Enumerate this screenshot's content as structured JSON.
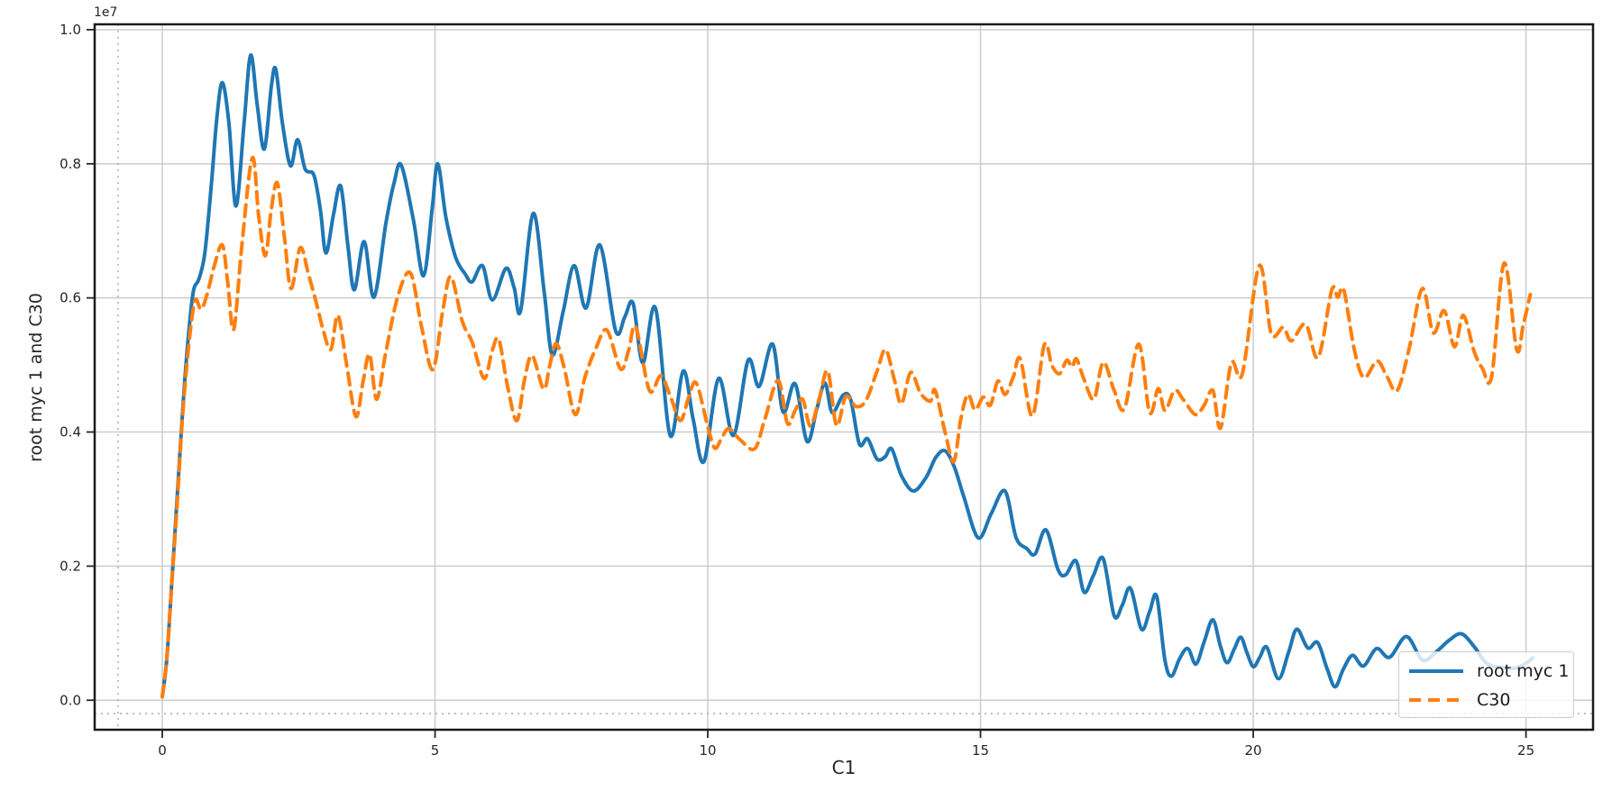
{
  "figure": {
    "y_offset_label": "1e7",
    "background": "#ffffff",
    "text_color": "#262626",
    "grid_color": "#cccccc",
    "spine_color": "#1a1a1a"
  },
  "legend": {
    "position": "lower right",
    "entries": [
      {
        "label": "root myc 1",
        "color": "#1f77b4",
        "style": "solid"
      },
      {
        "label": "C30",
        "color": "#ff7f0e",
        "style": "dashed"
      }
    ]
  },
  "chart_data": {
    "type": "line",
    "title": "",
    "xlabel": "C1",
    "ylabel": "root myc 1 and C30",
    "y_offset_label": "1e7",
    "y_unit_scale": 10000000,
    "xlim": [
      -1.24,
      26.23
    ],
    "ylim": [
      -0.044,
      1.008
    ],
    "grid": true,
    "x_ticks": [
      0,
      5,
      10,
      15,
      20,
      25
    ],
    "x_tick_labels": [
      "0",
      "5",
      "10",
      "15",
      "20",
      "25"
    ],
    "y_ticks": [
      0.0,
      0.2,
      0.4,
      0.6,
      0.8,
      1.0
    ],
    "y_tick_labels": [
      "0.0",
      "0.2",
      "0.4",
      "0.6",
      "0.8",
      "1.0"
    ],
    "reference_lines": [
      {
        "orientation": "vertical",
        "x": -0.81,
        "style": "dotted"
      },
      {
        "orientation": "horizontal",
        "y": -0.02,
        "style": "dotted"
      }
    ],
    "series": [
      {
        "name": "root myc 1",
        "color": "#1f77b4",
        "style": "solid",
        "points": [
          [
            0,
            0.005
          ],
          [
            0.08,
            0.06
          ],
          [
            0.17,
            0.17
          ],
          [
            0.27,
            0.3
          ],
          [
            0.38,
            0.44
          ],
          [
            0.48,
            0.545
          ],
          [
            0.57,
            0.61
          ],
          [
            0.67,
            0.628
          ],
          [
            0.78,
            0.667
          ],
          [
            0.9,
            0.77
          ],
          [
            1.0,
            0.868
          ],
          [
            1.1,
            0.921
          ],
          [
            1.22,
            0.862
          ],
          [
            1.35,
            0.737
          ],
          [
            1.5,
            0.862
          ],
          [
            1.62,
            0.962
          ],
          [
            1.74,
            0.888
          ],
          [
            1.87,
            0.822
          ],
          [
            2.0,
            0.916
          ],
          [
            2.08,
            0.941
          ],
          [
            2.2,
            0.862
          ],
          [
            2.35,
            0.797
          ],
          [
            2.48,
            0.836
          ],
          [
            2.62,
            0.792
          ],
          [
            2.78,
            0.783
          ],
          [
            2.9,
            0.73
          ],
          [
            3.0,
            0.667
          ],
          [
            3.14,
            0.725
          ],
          [
            3.27,
            0.767
          ],
          [
            3.4,
            0.68
          ],
          [
            3.52,
            0.612
          ],
          [
            3.7,
            0.684
          ],
          [
            3.88,
            0.601
          ],
          [
            4.1,
            0.712
          ],
          [
            4.25,
            0.772
          ],
          [
            4.38,
            0.798
          ],
          [
            4.6,
            0.718
          ],
          [
            4.79,
            0.633
          ],
          [
            4.95,
            0.735
          ],
          [
            5.05,
            0.8
          ],
          [
            5.2,
            0.72
          ],
          [
            5.38,
            0.66
          ],
          [
            5.55,
            0.636
          ],
          [
            5.68,
            0.624
          ],
          [
            5.87,
            0.648
          ],
          [
            6.05,
            0.597
          ],
          [
            6.3,
            0.644
          ],
          [
            6.45,
            0.615
          ],
          [
            6.57,
            0.581
          ],
          [
            6.8,
            0.726
          ],
          [
            7.0,
            0.61
          ],
          [
            7.15,
            0.515
          ],
          [
            7.35,
            0.58
          ],
          [
            7.55,
            0.648
          ],
          [
            7.77,
            0.585
          ],
          [
            8.02,
            0.679
          ],
          [
            8.31,
            0.551
          ],
          [
            8.48,
            0.572
          ],
          [
            8.63,
            0.592
          ],
          [
            8.81,
            0.503
          ],
          [
            9.04,
            0.585
          ],
          [
            9.31,
            0.395
          ],
          [
            9.55,
            0.491
          ],
          [
            9.73,
            0.42
          ],
          [
            9.93,
            0.356
          ],
          [
            10.2,
            0.48
          ],
          [
            10.47,
            0.395
          ],
          [
            10.74,
            0.507
          ],
          [
            10.94,
            0.468
          ],
          [
            11.19,
            0.531
          ],
          [
            11.38,
            0.43
          ],
          [
            11.6,
            0.472
          ],
          [
            11.82,
            0.386
          ],
          [
            12.0,
            0.435
          ],
          [
            12.15,
            0.473
          ],
          [
            12.28,
            0.429
          ],
          [
            12.48,
            0.455
          ],
          [
            12.62,
            0.448
          ],
          [
            12.78,
            0.382
          ],
          [
            12.93,
            0.39
          ],
          [
            13.1,
            0.36
          ],
          [
            13.25,
            0.363
          ],
          [
            13.37,
            0.375
          ],
          [
            13.55,
            0.335
          ],
          [
            13.77,
            0.312
          ],
          [
            14.0,
            0.332
          ],
          [
            14.18,
            0.362
          ],
          [
            14.35,
            0.372
          ],
          [
            14.52,
            0.348
          ],
          [
            14.7,
            0.302
          ],
          [
            14.96,
            0.242
          ],
          [
            15.2,
            0.279
          ],
          [
            15.45,
            0.312
          ],
          [
            15.65,
            0.243
          ],
          [
            15.85,
            0.226
          ],
          [
            16.0,
            0.218
          ],
          [
            16.2,
            0.254
          ],
          [
            16.42,
            0.195
          ],
          [
            16.56,
            0.187
          ],
          [
            16.75,
            0.208
          ],
          [
            16.9,
            0.161
          ],
          [
            17.07,
            0.186
          ],
          [
            17.25,
            0.211
          ],
          [
            17.45,
            0.126
          ],
          [
            17.6,
            0.142
          ],
          [
            17.75,
            0.167
          ],
          [
            17.95,
            0.106
          ],
          [
            18.1,
            0.132
          ],
          [
            18.23,
            0.155
          ],
          [
            18.38,
            0.06
          ],
          [
            18.5,
            0.036
          ],
          [
            18.65,
            0.062
          ],
          [
            18.8,
            0.077
          ],
          [
            18.95,
            0.054
          ],
          [
            19.1,
            0.087
          ],
          [
            19.26,
            0.12
          ],
          [
            19.4,
            0.08
          ],
          [
            19.52,
            0.056
          ],
          [
            19.65,
            0.076
          ],
          [
            19.77,
            0.094
          ],
          [
            19.88,
            0.072
          ],
          [
            20.0,
            0.05
          ],
          [
            20.12,
            0.064
          ],
          [
            20.25,
            0.079
          ],
          [
            20.46,
            0.032
          ],
          [
            20.65,
            0.072
          ],
          [
            20.8,
            0.106
          ],
          [
            21.0,
            0.078
          ],
          [
            21.18,
            0.086
          ],
          [
            21.35,
            0.048
          ],
          [
            21.5,
            0.02
          ],
          [
            21.65,
            0.046
          ],
          [
            21.82,
            0.067
          ],
          [
            22.02,
            0.051
          ],
          [
            22.26,
            0.077
          ],
          [
            22.5,
            0.064
          ],
          [
            22.81,
            0.095
          ],
          [
            23.1,
            0.06
          ],
          [
            23.35,
            0.072
          ],
          [
            23.6,
            0.09
          ],
          [
            23.82,
            0.099
          ],
          [
            24.05,
            0.08
          ],
          [
            24.28,
            0.055
          ],
          [
            24.55,
            0.049
          ],
          [
            24.8,
            0.048
          ],
          [
            25.0,
            0.055
          ],
          [
            25.12,
            0.063
          ]
        ]
      },
      {
        "name": "C30",
        "color": "#ff7f0e",
        "style": "dashed",
        "points": [
          [
            0,
            0.005
          ],
          [
            0.08,
            0.06
          ],
          [
            0.17,
            0.17
          ],
          [
            0.27,
            0.29
          ],
          [
            0.36,
            0.41
          ],
          [
            0.45,
            0.5
          ],
          [
            0.53,
            0.562
          ],
          [
            0.61,
            0.598
          ],
          [
            0.71,
            0.583
          ],
          [
            0.82,
            0.605
          ],
          [
            0.95,
            0.647
          ],
          [
            1.1,
            0.679
          ],
          [
            1.2,
            0.623
          ],
          [
            1.31,
            0.553
          ],
          [
            1.46,
            0.68
          ],
          [
            1.65,
            0.809
          ],
          [
            1.77,
            0.72
          ],
          [
            1.89,
            0.663
          ],
          [
            2.0,
            0.733
          ],
          [
            2.11,
            0.771
          ],
          [
            2.24,
            0.69
          ],
          [
            2.36,
            0.614
          ],
          [
            2.53,
            0.675
          ],
          [
            2.68,
            0.635
          ],
          [
            2.81,
            0.597
          ],
          [
            2.95,
            0.552
          ],
          [
            3.09,
            0.523
          ],
          [
            3.22,
            0.574
          ],
          [
            3.38,
            0.5
          ],
          [
            3.55,
            0.423
          ],
          [
            3.68,
            0.475
          ],
          [
            3.8,
            0.516
          ],
          [
            3.93,
            0.449
          ],
          [
            4.1,
            0.52
          ],
          [
            4.32,
            0.603
          ],
          [
            4.55,
            0.637
          ],
          [
            4.75,
            0.558
          ],
          [
            4.96,
            0.493
          ],
          [
            5.14,
            0.58
          ],
          [
            5.29,
            0.632
          ],
          [
            5.5,
            0.565
          ],
          [
            5.68,
            0.534
          ],
          [
            5.9,
            0.48
          ],
          [
            6.05,
            0.522
          ],
          [
            6.17,
            0.538
          ],
          [
            6.33,
            0.468
          ],
          [
            6.5,
            0.417
          ],
          [
            6.64,
            0.478
          ],
          [
            6.78,
            0.514
          ],
          [
            6.99,
            0.464
          ],
          [
            7.1,
            0.498
          ],
          [
            7.22,
            0.532
          ],
          [
            7.37,
            0.495
          ],
          [
            7.57,
            0.426
          ],
          [
            7.75,
            0.482
          ],
          [
            7.95,
            0.525
          ],
          [
            8.15,
            0.552
          ],
          [
            8.4,
            0.494
          ],
          [
            8.55,
            0.522
          ],
          [
            8.68,
            0.557
          ],
          [
            8.93,
            0.462
          ],
          [
            9.14,
            0.484
          ],
          [
            9.32,
            0.452
          ],
          [
            9.5,
            0.417
          ],
          [
            9.65,
            0.452
          ],
          [
            9.79,
            0.473
          ],
          [
            10.0,
            0.408
          ],
          [
            10.13,
            0.376
          ],
          [
            10.26,
            0.392
          ],
          [
            10.39,
            0.405
          ],
          [
            10.6,
            0.388
          ],
          [
            10.86,
            0.375
          ],
          [
            11.05,
            0.42
          ],
          [
            11.29,
            0.477
          ],
          [
            11.46,
            0.413
          ],
          [
            11.6,
            0.432
          ],
          [
            11.74,
            0.449
          ],
          [
            11.88,
            0.409
          ],
          [
            12.05,
            0.452
          ],
          [
            12.2,
            0.491
          ],
          [
            12.36,
            0.41
          ],
          [
            12.53,
            0.453
          ],
          [
            12.72,
            0.438
          ],
          [
            12.9,
            0.447
          ],
          [
            13.1,
            0.49
          ],
          [
            13.26,
            0.523
          ],
          [
            13.42,
            0.478
          ],
          [
            13.55,
            0.442
          ],
          [
            13.72,
            0.489
          ],
          [
            13.9,
            0.458
          ],
          [
            14.08,
            0.446
          ],
          [
            14.17,
            0.462
          ],
          [
            14.35,
            0.4
          ],
          [
            14.51,
            0.356
          ],
          [
            14.64,
            0.42
          ],
          [
            14.77,
            0.456
          ],
          [
            14.9,
            0.433
          ],
          [
            15.05,
            0.452
          ],
          [
            15.18,
            0.44
          ],
          [
            15.32,
            0.476
          ],
          [
            15.45,
            0.456
          ],
          [
            15.6,
            0.482
          ],
          [
            15.73,
            0.509
          ],
          [
            15.95,
            0.424
          ],
          [
            16.17,
            0.53
          ],
          [
            16.31,
            0.499
          ],
          [
            16.45,
            0.487
          ],
          [
            16.58,
            0.507
          ],
          [
            16.68,
            0.497
          ],
          [
            16.76,
            0.509
          ],
          [
            16.9,
            0.478
          ],
          [
            17.08,
            0.449
          ],
          [
            17.25,
            0.504
          ],
          [
            17.45,
            0.462
          ],
          [
            17.64,
            0.435
          ],
          [
            17.9,
            0.531
          ],
          [
            18.1,
            0.429
          ],
          [
            18.26,
            0.465
          ],
          [
            18.38,
            0.432
          ],
          [
            18.56,
            0.462
          ],
          [
            18.72,
            0.448
          ],
          [
            18.94,
            0.426
          ],
          [
            19.1,
            0.44
          ],
          [
            19.26,
            0.462
          ],
          [
            19.4,
            0.406
          ],
          [
            19.6,
            0.503
          ],
          [
            19.8,
            0.487
          ],
          [
            20.11,
            0.648
          ],
          [
            20.33,
            0.547
          ],
          [
            20.55,
            0.556
          ],
          [
            20.7,
            0.536
          ],
          [
            20.96,
            0.561
          ],
          [
            21.19,
            0.511
          ],
          [
            21.44,
            0.612
          ],
          [
            21.55,
            0.601
          ],
          [
            21.66,
            0.612
          ],
          [
            21.85,
            0.524
          ],
          [
            22.03,
            0.481
          ],
          [
            22.27,
            0.506
          ],
          [
            22.45,
            0.483
          ],
          [
            22.64,
            0.462
          ],
          [
            22.86,
            0.525
          ],
          [
            23.1,
            0.614
          ],
          [
            23.3,
            0.548
          ],
          [
            23.5,
            0.581
          ],
          [
            23.69,
            0.527
          ],
          [
            23.85,
            0.574
          ],
          [
            24.05,
            0.52
          ],
          [
            24.2,
            0.495
          ],
          [
            24.37,
            0.483
          ],
          [
            24.6,
            0.652
          ],
          [
            24.83,
            0.523
          ],
          [
            24.95,
            0.56
          ],
          [
            25.08,
            0.605
          ]
        ]
      }
    ]
  }
}
